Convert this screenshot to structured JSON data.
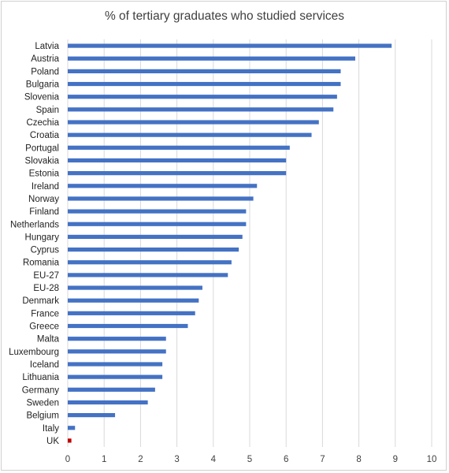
{
  "chart_data": {
    "type": "bar",
    "orientation": "horizontal",
    "title": "% of tertiary graduates who studied services",
    "xlabel": "",
    "ylabel": "",
    "xlim": [
      0,
      10
    ],
    "x_ticks": [
      "0",
      "1",
      "2",
      "3",
      "4",
      "5",
      "6",
      "7",
      "8",
      "9",
      "10"
    ],
    "grid": "vertical",
    "legend": "none",
    "default_color": "#4472c4",
    "highlight_color": "#c00000",
    "highlight_category": "UK",
    "categories": [
      "Latvia",
      "Austria",
      "Poland",
      "Bulgaria",
      "Slovenia",
      "Spain",
      "Czechia",
      "Croatia",
      "Portugal",
      "Slovakia",
      "Estonia",
      "Ireland",
      "Norway",
      "Finland",
      "Netherlands",
      "Hungary",
      "Cyprus",
      "Romania",
      "EU-27",
      "EU-28",
      "Denmark",
      "France",
      "Greece",
      "Malta",
      "Luxembourg",
      "Iceland",
      "Lithuania",
      "Germany",
      "Sweden",
      "Belgium",
      "Italy",
      "UK"
    ],
    "values": [
      8.9,
      7.9,
      7.5,
      7.5,
      7.4,
      7.3,
      6.9,
      6.7,
      6.1,
      6.0,
      6.0,
      5.2,
      5.1,
      4.9,
      4.9,
      4.8,
      4.7,
      4.5,
      4.4,
      3.7,
      3.6,
      3.5,
      3.3,
      2.7,
      2.7,
      2.6,
      2.6,
      2.4,
      2.2,
      1.3,
      0.2,
      0.1
    ]
  }
}
